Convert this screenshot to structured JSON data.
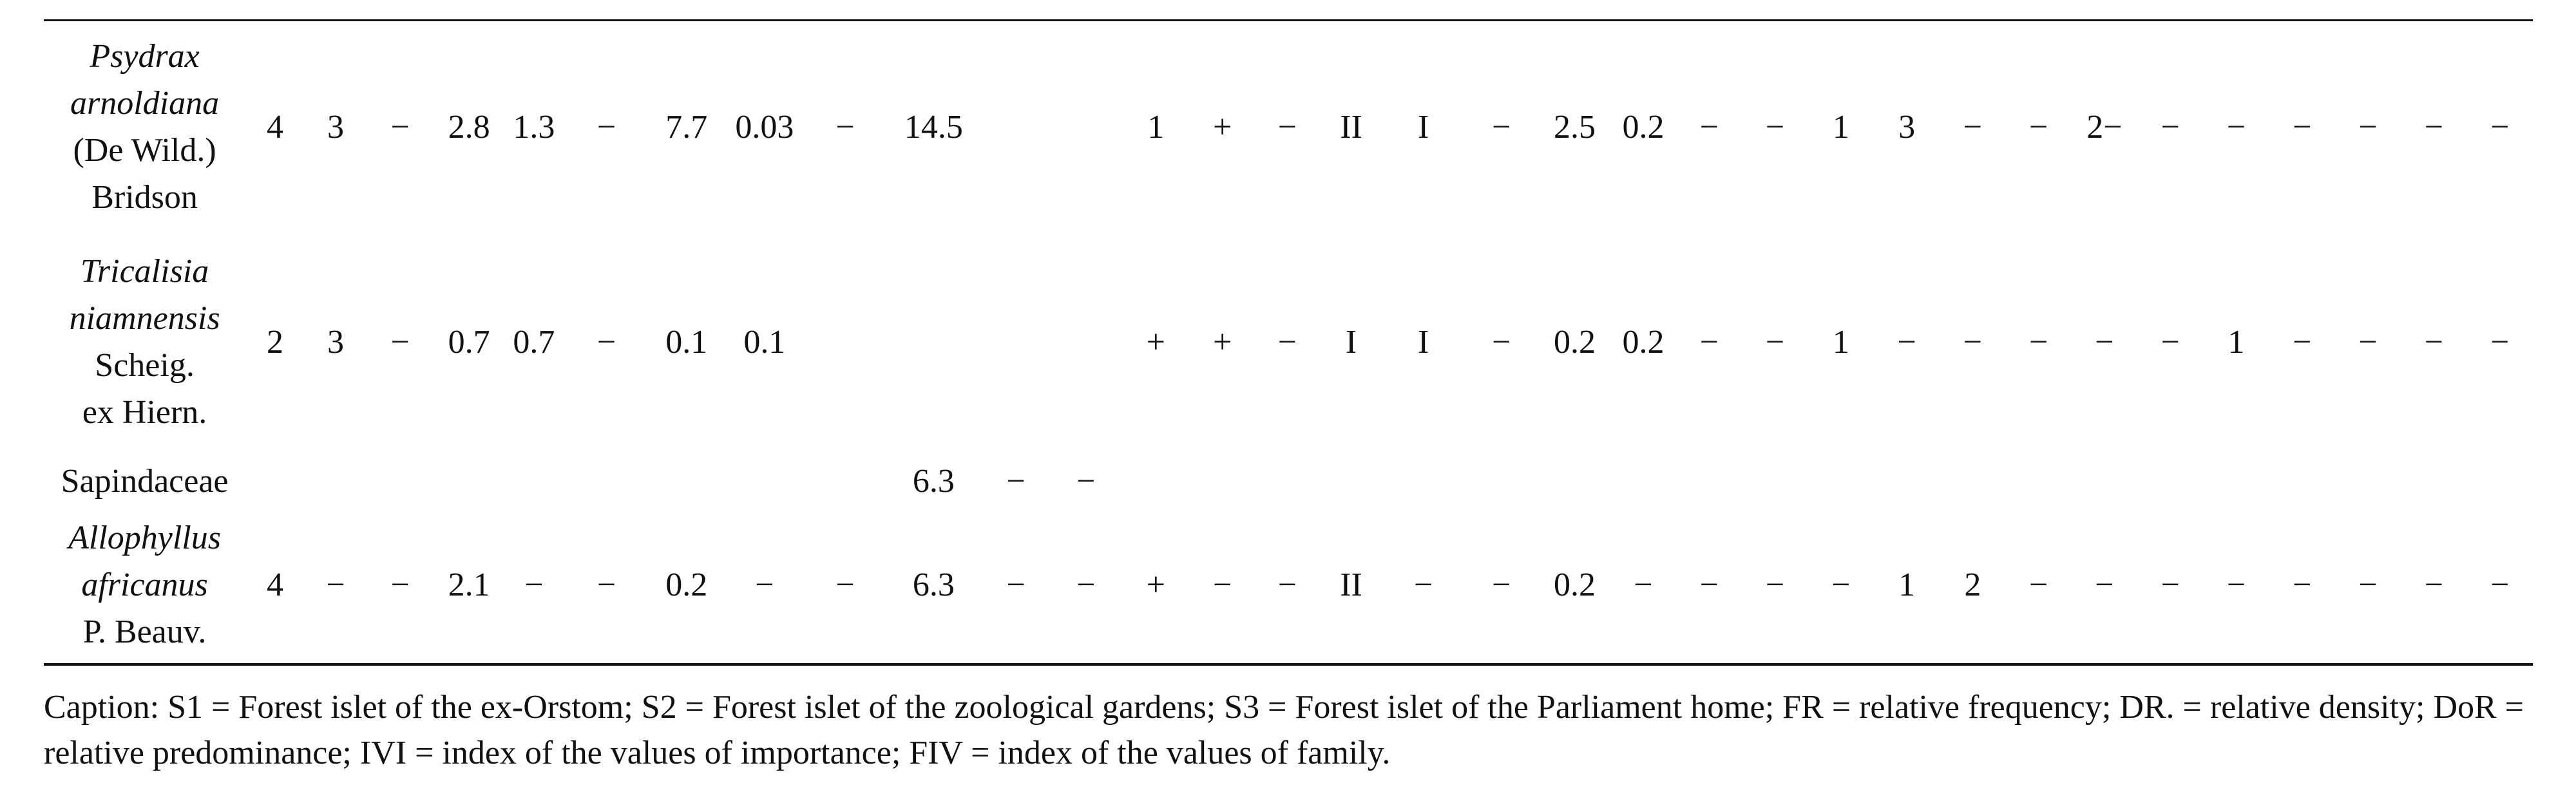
{
  "table": {
    "rows": [
      {
        "name_lines": [
          {
            "text": "Psydrax",
            "italic": true
          },
          {
            "text": "arnoldiana",
            "italic": true
          },
          {
            "text": "(De Wild.)",
            "italic": false
          },
          {
            "text": "Bridson",
            "italic": false
          }
        ],
        "cells": [
          "4",
          "3",
          "−",
          "2.8",
          "1.3",
          "−",
          "7.7",
          "0.03",
          "−",
          "14.5",
          "",
          "",
          "1",
          "+",
          "−",
          "II",
          "I",
          "−",
          "2.5",
          "0.2",
          "−",
          "−",
          "1",
          "3",
          "−",
          "−",
          "2−",
          "−",
          "−",
          "−",
          "−",
          "−",
          "−"
        ]
      },
      {
        "name_lines": [
          {
            "text": "Tricalisia",
            "italic": true
          },
          {
            "text": "niamnensis",
            "italic": true
          },
          {
            "text": "Scheig.",
            "italic": false
          },
          {
            "text": "ex Hiern.",
            "italic": false
          }
        ],
        "cells": [
          "2",
          "3",
          "−",
          "0.7",
          "0.7",
          "−",
          "0.1",
          "0.1",
          "",
          "",
          "",
          "",
          "+",
          "+",
          "−",
          "I",
          "I",
          "−",
          "0.2",
          "0.2",
          "−",
          "−",
          "1",
          "−",
          "−",
          "−",
          "−",
          "−",
          "1",
          "−",
          "−",
          "−",
          "−"
        ]
      },
      {
        "name_lines": [
          {
            "text": "Sapindaceae",
            "italic": false
          }
        ],
        "cells": [
          "",
          "",
          "",
          "",
          "",
          "",
          "",
          "",
          "",
          "6.3",
          "−",
          "−",
          "",
          "",
          "",
          "",
          "",
          "",
          "",
          "",
          "",
          "",
          "",
          "",
          "",
          "",
          "",
          "",
          "",
          "",
          "",
          "",
          ""
        ]
      },
      {
        "name_lines": [
          {
            "text": "Allophyllus",
            "italic": true
          },
          {
            "text": "africanus",
            "italic": true
          },
          {
            "text": "P. Beauv.",
            "italic": false
          }
        ],
        "cells": [
          "4",
          "−",
          "−",
          "2.1",
          "−",
          "−",
          "0.2",
          "−",
          "−",
          "6.3",
          "−",
          "−",
          "+",
          "−",
          "−",
          "II",
          "−",
          "−",
          "0.2",
          "−",
          "−",
          "−",
          "−",
          "1",
          "2",
          "−",
          "−",
          "−",
          "−",
          "−",
          "−",
          "−",
          "−"
        ]
      }
    ]
  },
  "caption": {
    "text": "Caption: S1 = Forest islet of the ex-Orstom; S2 = Forest islet of the zoological gardens; S3 = Forest islet of the Parliament home; FR = relative frequency; DR. = relative density; DoR = relative predominance; IVI = index of the values of importance; FIV = index of the values of family."
  }
}
